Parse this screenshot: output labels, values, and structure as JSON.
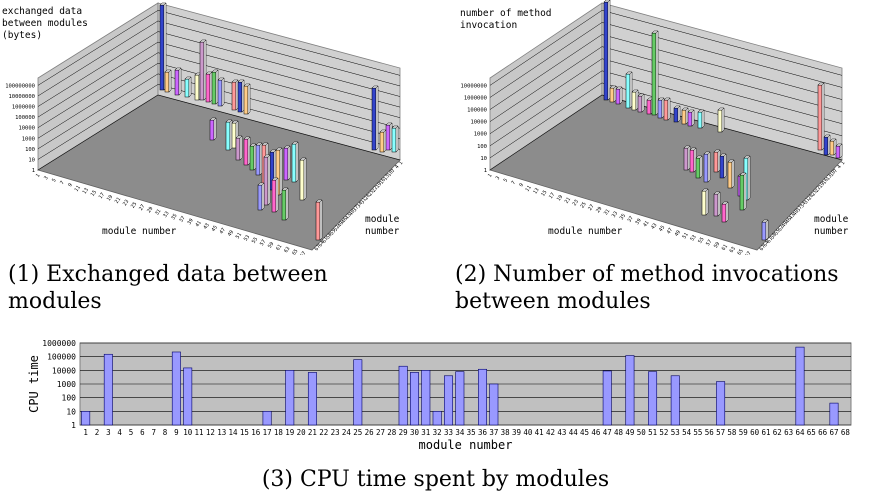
{
  "captions": {
    "c1": "(1) Exchanged data between modules",
    "c2": "(2) Number of method invocations between modules",
    "c3": "(3) CPU time spent by modules"
  },
  "chart_data": [
    {
      "type": "bar3d",
      "ylabel": "exchanged data between modules (bytes)",
      "xlabel": "module number",
      "zlabel": "module number",
      "log_scale": true,
      "y_ticks": [
        "1",
        "10",
        "100",
        "1000",
        "10000",
        "100000",
        "1000000",
        "10000000",
        "100000000"
      ],
      "x_categories": [
        1,
        3,
        5,
        7,
        9,
        11,
        13,
        15,
        17,
        19,
        21,
        23,
        25,
        27,
        29,
        31,
        33,
        35,
        37,
        39,
        41,
        43,
        45,
        47,
        49,
        51,
        53,
        55,
        57,
        59,
        61,
        63,
        65,
        67
      ],
      "z_categories": [
        67,
        64,
        61,
        58,
        55,
        52,
        49,
        46,
        43,
        40,
        37,
        34,
        31,
        28,
        25,
        22,
        19,
        16,
        13,
        10,
        7,
        4,
        1
      ],
      "bar_colors": [
        "#3344cc",
        "#ffcc88",
        "#cc66ff",
        "#88ffff",
        "#ffffcc",
        "#cc99cc",
        "#ff66cc",
        "#66cc66",
        "#9999ff",
        "#ff9999"
      ]
    },
    {
      "type": "bar3d",
      "ylabel": "number of method invocation",
      "xlabel": "module number",
      "zlabel": "module number",
      "log_scale": true,
      "y_ticks": [
        "1",
        "10",
        "100",
        "1000",
        "10000",
        "100000",
        "1000000",
        "10000000"
      ],
      "x_categories": [
        1,
        3,
        5,
        7,
        9,
        11,
        13,
        15,
        17,
        19,
        21,
        23,
        25,
        27,
        29,
        31,
        33,
        35,
        37,
        39,
        41,
        43,
        45,
        47,
        49,
        51,
        53,
        55,
        57,
        59,
        61,
        63,
        65,
        67
      ],
      "z_categories": [
        67,
        64,
        61,
        58,
        55,
        52,
        49,
        46,
        43,
        40,
        37,
        34,
        31,
        28,
        25,
        22,
        19,
        16,
        13,
        10,
        7,
        4,
        1
      ],
      "bar_colors": [
        "#3344cc",
        "#ffcc88",
        "#cc66ff",
        "#88ffff",
        "#ffffcc",
        "#cc99cc",
        "#ff66cc",
        "#66cc66",
        "#9999ff",
        "#ff9999"
      ]
    },
    {
      "type": "bar",
      "xlabel": "module number",
      "ylabel": "CPU time",
      "log_scale": true,
      "ylim": [
        1,
        1000000
      ],
      "y_ticks": [
        "1",
        "10",
        "100",
        "1000",
        "10000",
        "100000",
        "1000000"
      ],
      "categories": [
        1,
        2,
        3,
        4,
        5,
        6,
        7,
        8,
        9,
        10,
        11,
        12,
        13,
        14,
        15,
        16,
        17,
        18,
        19,
        20,
        21,
        22,
        23,
        24,
        25,
        26,
        27,
        28,
        29,
        30,
        31,
        32,
        33,
        34,
        35,
        36,
        37,
        38,
        39,
        40,
        41,
        42,
        43,
        44,
        45,
        46,
        47,
        48,
        49,
        50,
        51,
        52,
        53,
        54,
        55,
        56,
        57,
        58,
        59,
        60,
        61,
        62,
        63,
        64,
        65,
        66,
        67,
        68
      ],
      "values": [
        10,
        0,
        150000,
        0,
        0,
        0,
        0,
        0,
        220000,
        15000,
        0,
        0,
        0,
        0,
        0,
        0,
        10,
        0,
        10000,
        0,
        7000,
        0,
        0,
        0,
        60000,
        0,
        0,
        0,
        20000,
        7000,
        10000,
        10,
        4000,
        8000,
        0,
        12000,
        1000,
        0,
        0,
        0,
        0,
        0,
        0,
        0,
        0,
        0,
        9000,
        0,
        120000,
        0,
        8000,
        0,
        4000,
        0,
        0,
        0,
        1500,
        0,
        0,
        0,
        0,
        0,
        0,
        500000,
        0,
        0,
        40,
        0
      ],
      "bar_color": "#9999ff",
      "plot_color": "#c0c0c0"
    }
  ]
}
